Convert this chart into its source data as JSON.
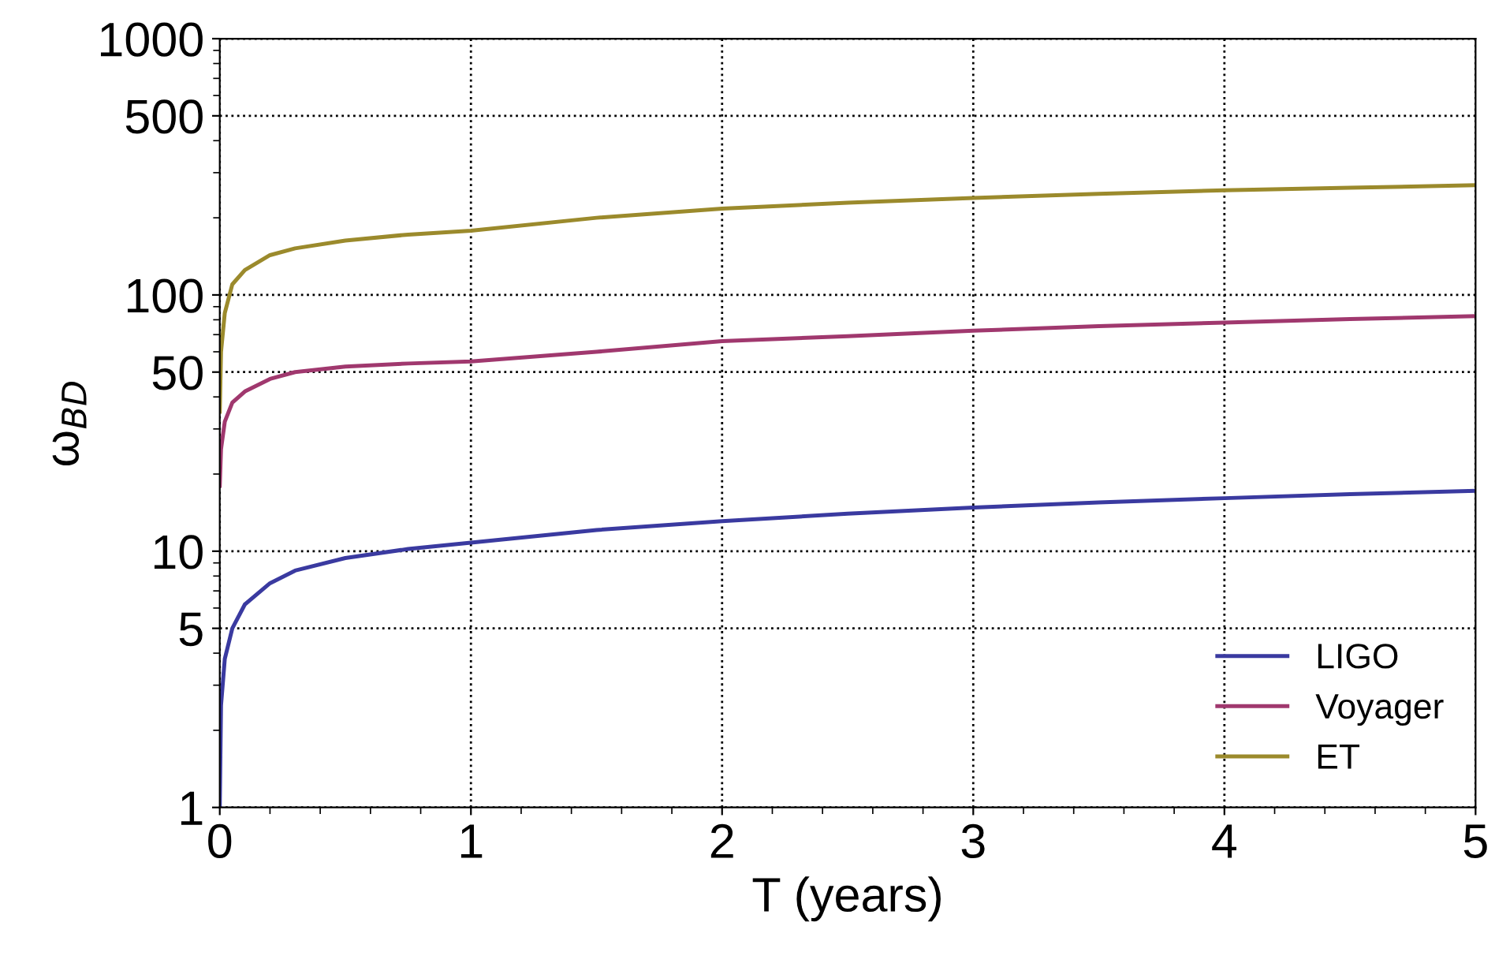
{
  "chart_data": {
    "type": "line",
    "xlabel": "T (years)",
    "ylabel": "ω$_{BD}$",
    "log": "y",
    "xlim": [
      0,
      5
    ],
    "xticks": [
      0,
      1,
      2,
      3,
      4,
      5
    ],
    "ylim": [
      1,
      1000
    ],
    "yticks": [
      1,
      5,
      10,
      50,
      100,
      500,
      1000
    ],
    "grid": true,
    "legend": "bottom right",
    "marker": "none",
    "line_style": "solid",
    "x": [
      0,
      0.005,
      0.02,
      0.05,
      0.1,
      0.2,
      0.3,
      0.5,
      0.75,
      1,
      1.5,
      2,
      2.5,
      3,
      3.5,
      4,
      4.5,
      5
    ],
    "series": [
      {
        "name": "LIGO",
        "color": "#3a3aa0",
        "values": [
          1,
          2.5,
          3.8,
          5,
          6.2,
          7.5,
          8.4,
          9.4,
          10.2,
          10.8,
          12.1,
          13.1,
          14,
          14.8,
          15.5,
          16.1,
          16.7,
          17.2
        ]
      },
      {
        "name": "Voyager",
        "color": "#a0386e",
        "values": [
          18,
          25,
          32,
          38,
          42,
          47,
          50,
          52.5,
          54,
          55,
          60,
          66,
          69,
          72.5,
          75.5,
          78,
          80.5,
          82.7
        ]
      },
      {
        "name": "ET",
        "color": "#9b8a2c",
        "values": [
          35,
          60,
          85,
          110,
          125,
          143,
          152,
          163,
          172,
          178,
          200,
          217,
          229,
          239,
          248,
          256,
          262,
          268
        ]
      }
    ]
  }
}
